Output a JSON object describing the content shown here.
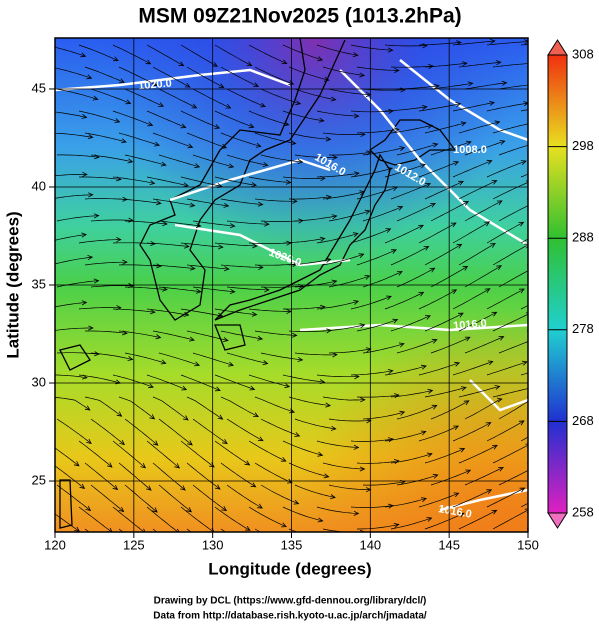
{
  "title": "MSM 09Z21Nov2025 (1013.2hPa)",
  "axes": {
    "x_label": "Longitude (degrees)",
    "y_label": "Latitude  (degrees)",
    "xlim": [
      120,
      150
    ],
    "ylim": [
      22.4,
      47.6
    ],
    "xticks": [
      120,
      125,
      130,
      135,
      140,
      145,
      150
    ],
    "yticks": [
      25,
      30,
      35,
      40,
      45
    ]
  },
  "colorbar": {
    "range": [
      258,
      308
    ],
    "ticks": [
      258,
      268,
      278,
      288,
      298,
      308
    ]
  },
  "contour_labels": [
    "1020.0",
    "1008.0",
    "1012.0",
    "1016.0",
    "1020.0",
    "1016.0",
    "1016.0"
  ],
  "footer": [
    "Drawing by DCL (https://www.gfd-dennou.org/library/dcl/)",
    "Data from http://database.rish.kyoto-u.ac.jp/arch/jmadata/"
  ]
}
